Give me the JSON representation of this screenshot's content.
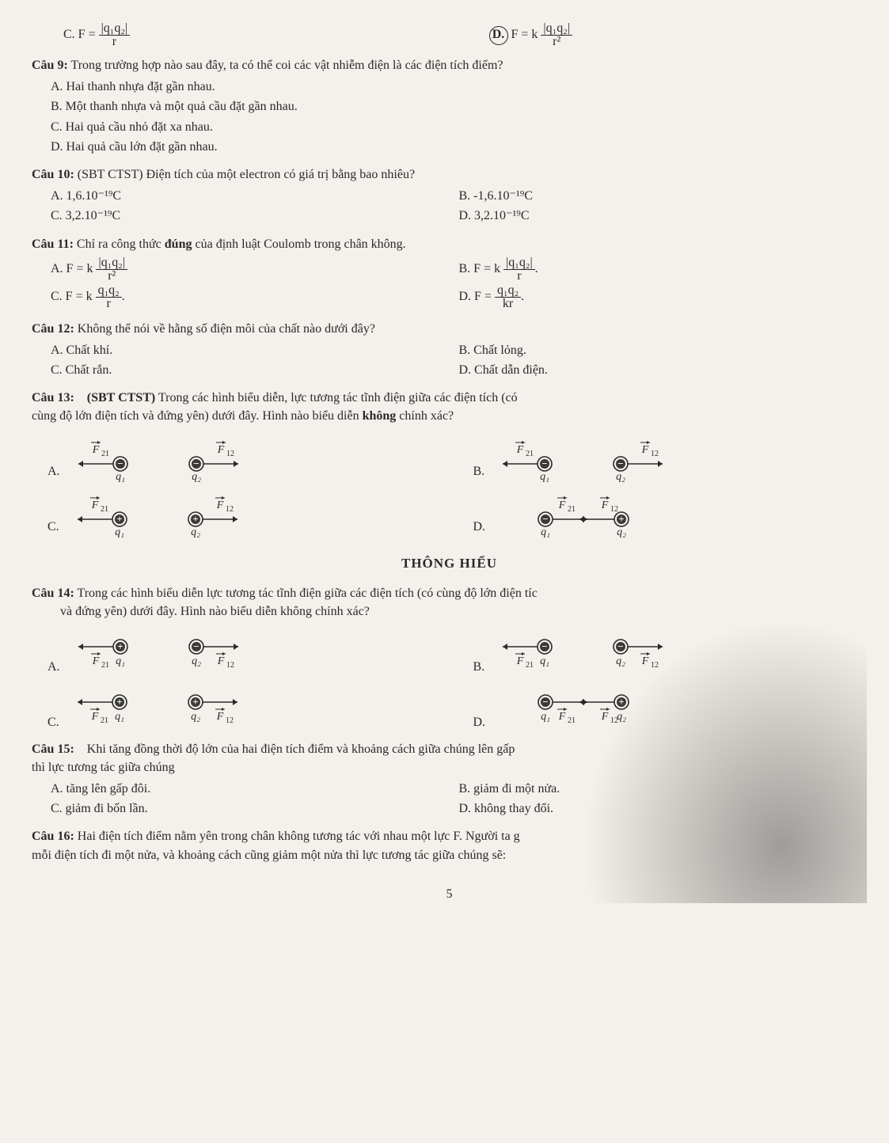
{
  "top": {
    "C": "C. F = |q₁q₂| / r",
    "D": "F = k |q₁q₂| / r²",
    "D_prefix": "D."
  },
  "q9": {
    "stem_label": "Câu 9:",
    "stem": "Trong trường hợp nào sau đây, ta có thể coi các vật nhiễm điện là các điện tích điểm?",
    "A": "A. Hai thanh nhựa đặt gần nhau.",
    "B": "B. Một thanh nhựa và một quả cầu đặt gần nhau.",
    "C": "C. Hai quả cầu nhỏ đặt xa nhau.",
    "D": "D. Hai quả cầu lớn đặt gần nhau."
  },
  "q10": {
    "stem_label": "Câu 10:",
    "stem": "(SBT CTST) Điện tích của một electron có giá trị bằng bao nhiêu?",
    "A": "A. 1,6.10⁻¹⁹C",
    "B": "B. -1,6.10⁻¹⁹C",
    "C": "C. 3,2.10⁻¹⁹C",
    "D": "D. 3,2.10⁻¹⁹C"
  },
  "q11": {
    "stem_label": "Câu 11:",
    "stem": "Chỉ ra công thức đúng của định luật Coulomb trong chân không.",
    "A_prefix": "A. F = k",
    "A_num": "|q₁q₂|",
    "A_den": "r²",
    "B_prefix": "B. F = k",
    "B_num": "|q₁q₂|",
    "B_den": "r",
    "C_prefix": "C. F = k",
    "C_num": "q₁q₂",
    "C_den": "r",
    "D_prefix": "D. F =",
    "D_num": "q₁q₂",
    "D_den": "kr"
  },
  "q12": {
    "stem_label": "Câu 12:",
    "stem": "Không thể nói về hằng số điện môi của chất nào dưới đây?",
    "A": "A. Chất khí.",
    "B": "B. Chất lỏng.",
    "C": "C. Chất rắn.",
    "D": "D. Chất dẫn điện."
  },
  "q13": {
    "stem_label": "Câu 13:",
    "stem1": "(SBT CTST) Trong các hình biểu diễn, lực tương tác tĩnh điện giữa các điện tích (có",
    "stem2": "cùng độ lớn điện tích và đứng yên) dưới đây. Hình nào biểu diễn không chính xác?"
  },
  "heading": "THÔNG HIỂU",
  "q14": {
    "stem_label": "Câu 14:",
    "stem1": "Trong các hình biểu diễn lực tương tác tĩnh điện giữa các điện tích (có cùng độ lớn điện tíc",
    "stem2": "và đứng yên) dưới đây. Hình nào biểu diễn không chính xác?"
  },
  "q15": {
    "stem_label": "Câu 15:",
    "stem1": "Khi tăng đồng thời độ lớn của hai điện tích điểm và khoảng cách giữa chúng lên gấp",
    "stem2": "thì lực tương tác giữa chúng",
    "A": "A. tăng lên gấp đôi.",
    "B": "B. giảm đi một nửa.",
    "C": "C. giảm đi bốn lần.",
    "D": "D. không thay đổi."
  },
  "q16": {
    "stem_label": "Câu 16:",
    "stem1": "Hai điện tích điểm nằm yên trong chân không tương tác với nhau một lực F. Người ta g",
    "stem2": "mỗi điện tích đi một nửa, và khoảng cách cũng giảm một nửa thì lực tương tác giữa chúng sẽ:"
  },
  "pageno": "5",
  "colors": {
    "text": "#2a2a2a",
    "paper": "#f4f0eb",
    "stroke": "#2a2a2a",
    "charge_pos_fill": "#3a3a3a",
    "charge_neg_fill": "#3a3a3a",
    "charge_ring": "#2a2a2a"
  },
  "diagrams13": {
    "scale": 1.0,
    "cells": [
      {
        "tag": "A.",
        "q1": "−",
        "q2": "−",
        "F21_dir": "left",
        "F12_dir": "right",
        "labels_above": true
      },
      {
        "tag": "B.",
        "q1": "−",
        "q2": "−",
        "F21_dir": "left",
        "F12_dir": "right",
        "labels_above": true
      },
      {
        "tag": "C.",
        "q1": "+",
        "q2": "+",
        "F21_dir": "left",
        "F12_dir": "right",
        "labels_above": true
      },
      {
        "tag": "D.",
        "q1": "−",
        "q2": "+",
        "F21_dir": "right",
        "F12_dir": "left",
        "labels_above": true
      }
    ]
  },
  "diagrams14": {
    "cells": [
      {
        "tag": "A.",
        "q1": "+",
        "q2": "−",
        "F21_dir": "left",
        "F12_dir": "right",
        "labels_below": true
      },
      {
        "tag": "B.",
        "q1": "−",
        "q2": "−",
        "F21_dir": "left",
        "F12_dir": "right",
        "labels_below": true
      },
      {
        "tag": "C.",
        "q1": "+",
        "q2": "+",
        "F21_dir": "left",
        "F12_dir": "right",
        "labels_below": true
      },
      {
        "tag": "D.",
        "q1": "−",
        "q2": "+",
        "F21_dir": "right",
        "F12_dir": "left",
        "labels_below": true
      }
    ]
  }
}
